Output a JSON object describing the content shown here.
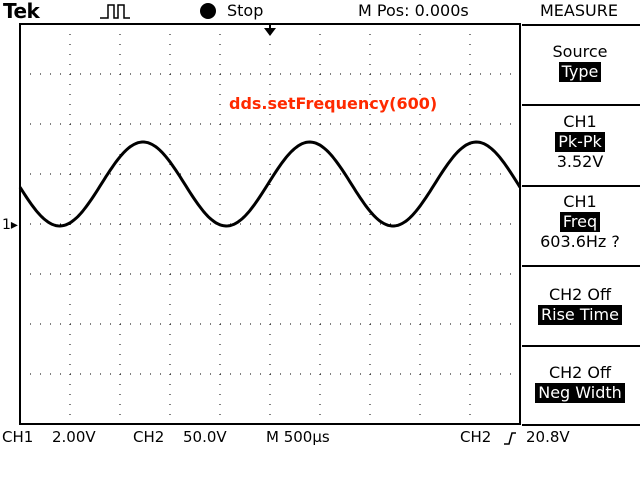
{
  "header": {
    "brand": "Tek",
    "run_state": "Stop",
    "m_pos": "M Pos: 0.000s",
    "menu_title": "MEASURE"
  },
  "overlay": {
    "code_label": "dds.setFrequency(600)",
    "code_color": "#ff2a00"
  },
  "side_menu": {
    "source_label": "Source",
    "type_label": "Type",
    "meas1": {
      "ch": "CH1",
      "type": "Pk-Pk",
      "value": "3.52V"
    },
    "meas2": {
      "ch": "CH1",
      "type": "Freq",
      "value": "603.6Hz ?"
    },
    "meas3": {
      "ch": "CH2 Off",
      "type": "Rise Time"
    },
    "meas4": {
      "ch": "CH2 Off",
      "type": "Neg Width"
    }
  },
  "markers": {
    "ch1": "1"
  },
  "status": {
    "ch1_label": "CH1",
    "ch1_scale": "2.00V",
    "ch2_label": "CH2",
    "ch2_scale": "50.0V",
    "m_timebase": "M 500μs",
    "trig_source": "CH2",
    "trig_level": "20.8V"
  },
  "waveform": {
    "cycles_visible": 3,
    "frequency_hz": 603.6,
    "pk_pk_v": 3.52
  }
}
